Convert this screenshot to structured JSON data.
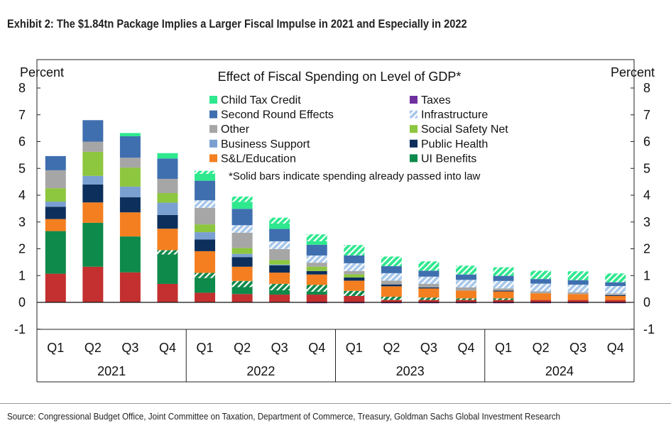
{
  "title": "Exhibit 2: The $1.84tn Package Implies a Larger Fiscal Impulse in 2021 and Especially in 2022",
  "source": "Source: Congressional Budget Office, Joint Committee on Taxation, Department of Commerce, Treasury, Goldman Sachs Global Investment Research",
  "chart_data": {
    "type": "bar",
    "stacked": true,
    "title": "Effect of Fiscal Spending on Level of GDP*",
    "footnote": "*Solid bars indicate spending already passed into law",
    "ylabel_left": "Percent",
    "ylabel_right": "Percent",
    "ylim": [
      -1,
      8
    ],
    "yticks": [
      "-1",
      "0",
      "1",
      "2",
      "3",
      "4",
      "5",
      "6",
      "7",
      "8"
    ],
    "categories": [
      "Q1",
      "Q2",
      "Q3",
      "Q4",
      "Q1",
      "Q2",
      "Q3",
      "Q4",
      "Q1",
      "Q2",
      "Q3",
      "Q4",
      "Q1",
      "Q2",
      "Q3",
      "Q4"
    ],
    "years": [
      "2021",
      "2022",
      "2023",
      "2024"
    ],
    "legend": [
      {
        "label": "Child Tax Credit",
        "color": "#2EE88E",
        "hatched": false
      },
      {
        "label": "Taxes",
        "color": "#7030A0",
        "hatched": false
      },
      {
        "label": "Second Round Effects",
        "color": "#3F6FAF",
        "hatched": false
      },
      {
        "label": "Infrastructure",
        "color": "#A9C8EA",
        "hatched": true
      },
      {
        "label": "Other",
        "color": "#A6A6A6",
        "hatched": false
      },
      {
        "label": "Social Safety Net",
        "color": "#8DC63F",
        "hatched": false
      },
      {
        "label": "Business Support",
        "color": "#7AA0D2",
        "hatched": false
      },
      {
        "label": "Public Health",
        "color": "#0C2F5C",
        "hatched": false
      },
      {
        "label": "S&L/Education",
        "color": "#F47F20",
        "hatched": false
      },
      {
        "label": "UI Benefits",
        "color": "#0E8A4A",
        "hatched": false
      }
    ],
    "series": [
      {
        "name": "",
        "color": "#C3302F",
        "hatched": false,
        "values": [
          1.07,
          1.33,
          1.12,
          0.69,
          0.36,
          0.31,
          0.29,
          0.29,
          0.24,
          0.09,
          0.09,
          0.09,
          0.09,
          0.09,
          0.09,
          0.09
        ]
      },
      {
        "name": "UI Benefits",
        "color": "#0E8A4A",
        "hatched": false,
        "values": [
          1.59,
          1.64,
          1.34,
          1.1,
          0.55,
          0.26,
          0.16,
          0.11,
          0,
          0,
          0,
          0,
          0,
          0,
          0,
          0
        ]
      },
      {
        "name": "UI Benefits",
        "color": "#0E8A4A",
        "hatched": true,
        "values": [
          0,
          0,
          0,
          0.16,
          0.19,
          0.23,
          0.24,
          0.25,
          0.19,
          0.12,
          0.09,
          0.06,
          0.06,
          0,
          0,
          0
        ]
      },
      {
        "name": "S&L/Education",
        "color": "#F47F20",
        "hatched": false,
        "values": [
          0.45,
          0.76,
          0.9,
          0.8,
          0.81,
          0.53,
          0.42,
          0.39,
          0.38,
          0.39,
          0.34,
          0.29,
          0.26,
          0.25,
          0.22,
          0.15
        ]
      },
      {
        "name": "Public Health",
        "color": "#0C2F5C",
        "hatched": false,
        "values": [
          0.46,
          0.67,
          0.56,
          0.51,
          0.44,
          0.36,
          0.27,
          0.13,
          0.12,
          0.07,
          0.04,
          0,
          0.03,
          0,
          0,
          0.03
        ]
      },
      {
        "name": "Business Support",
        "color": "#7AA0D2",
        "hatched": false,
        "values": [
          0.19,
          0.32,
          0.4,
          0.46,
          0.27,
          0.12,
          0.03,
          0,
          0,
          0,
          0,
          0,
          0,
          0,
          0,
          0
        ]
      },
      {
        "name": "Social Safety Net",
        "color": "#8DC63F",
        "hatched": false,
        "values": [
          0.5,
          0.9,
          0.71,
          0.36,
          0.29,
          0.22,
          0.17,
          0.16,
          0.12,
          0,
          0,
          0,
          0,
          0,
          0,
          0
        ]
      },
      {
        "name": "Other",
        "color": "#A6A6A6",
        "hatched": false,
        "values": [
          0.67,
          0.38,
          0.37,
          0.53,
          0.62,
          0.57,
          0.41,
          0.15,
          0.12,
          0.14,
          0.13,
          0.12,
          0.08,
          0.07,
          0.07,
          0.06
        ]
      },
      {
        "name": "Infrastructure",
        "color": "#A9C8EA",
        "hatched": true,
        "values": [
          0,
          0,
          0,
          0,
          0.28,
          0.28,
          0.29,
          0.27,
          0.29,
          0.28,
          0.27,
          0.28,
          0.28,
          0.29,
          0.28,
          0.28
        ]
      },
      {
        "name": "Second Round Effects",
        "color": "#3F6FAF",
        "hatched": false,
        "values": [
          0.53,
          0.8,
          0.8,
          0.76,
          0.73,
          0.61,
          0.46,
          0.4,
          0.29,
          0.26,
          0.22,
          0.2,
          0.19,
          0.17,
          0.17,
          0.14
        ]
      },
      {
        "name": "Child Tax Credit",
        "color": "#2EE88E",
        "hatched": false,
        "values": [
          0,
          0,
          0.12,
          0.2,
          0.26,
          0.26,
          0.2,
          0.13,
          0,
          0,
          0,
          0,
          0,
          0,
          0,
          0
        ]
      },
      {
        "name": "Child Tax Credit",
        "color": "#2EE88E",
        "hatched": true,
        "values": [
          0,
          0,
          0,
          0,
          0.11,
          0.2,
          0.22,
          0.26,
          0.39,
          0.36,
          0.35,
          0.33,
          0.32,
          0.31,
          0.33,
          0.33
        ]
      },
      {
        "name": "Taxes",
        "color": "#7030A0",
        "hatched": false,
        "values": [
          0,
          0,
          0,
          0,
          0,
          0,
          0,
          -0.03,
          -0.03,
          -0.03,
          -0.03,
          -0.03,
          -0.03,
          -0.03,
          -0.03,
          -0.03
        ]
      }
    ]
  }
}
